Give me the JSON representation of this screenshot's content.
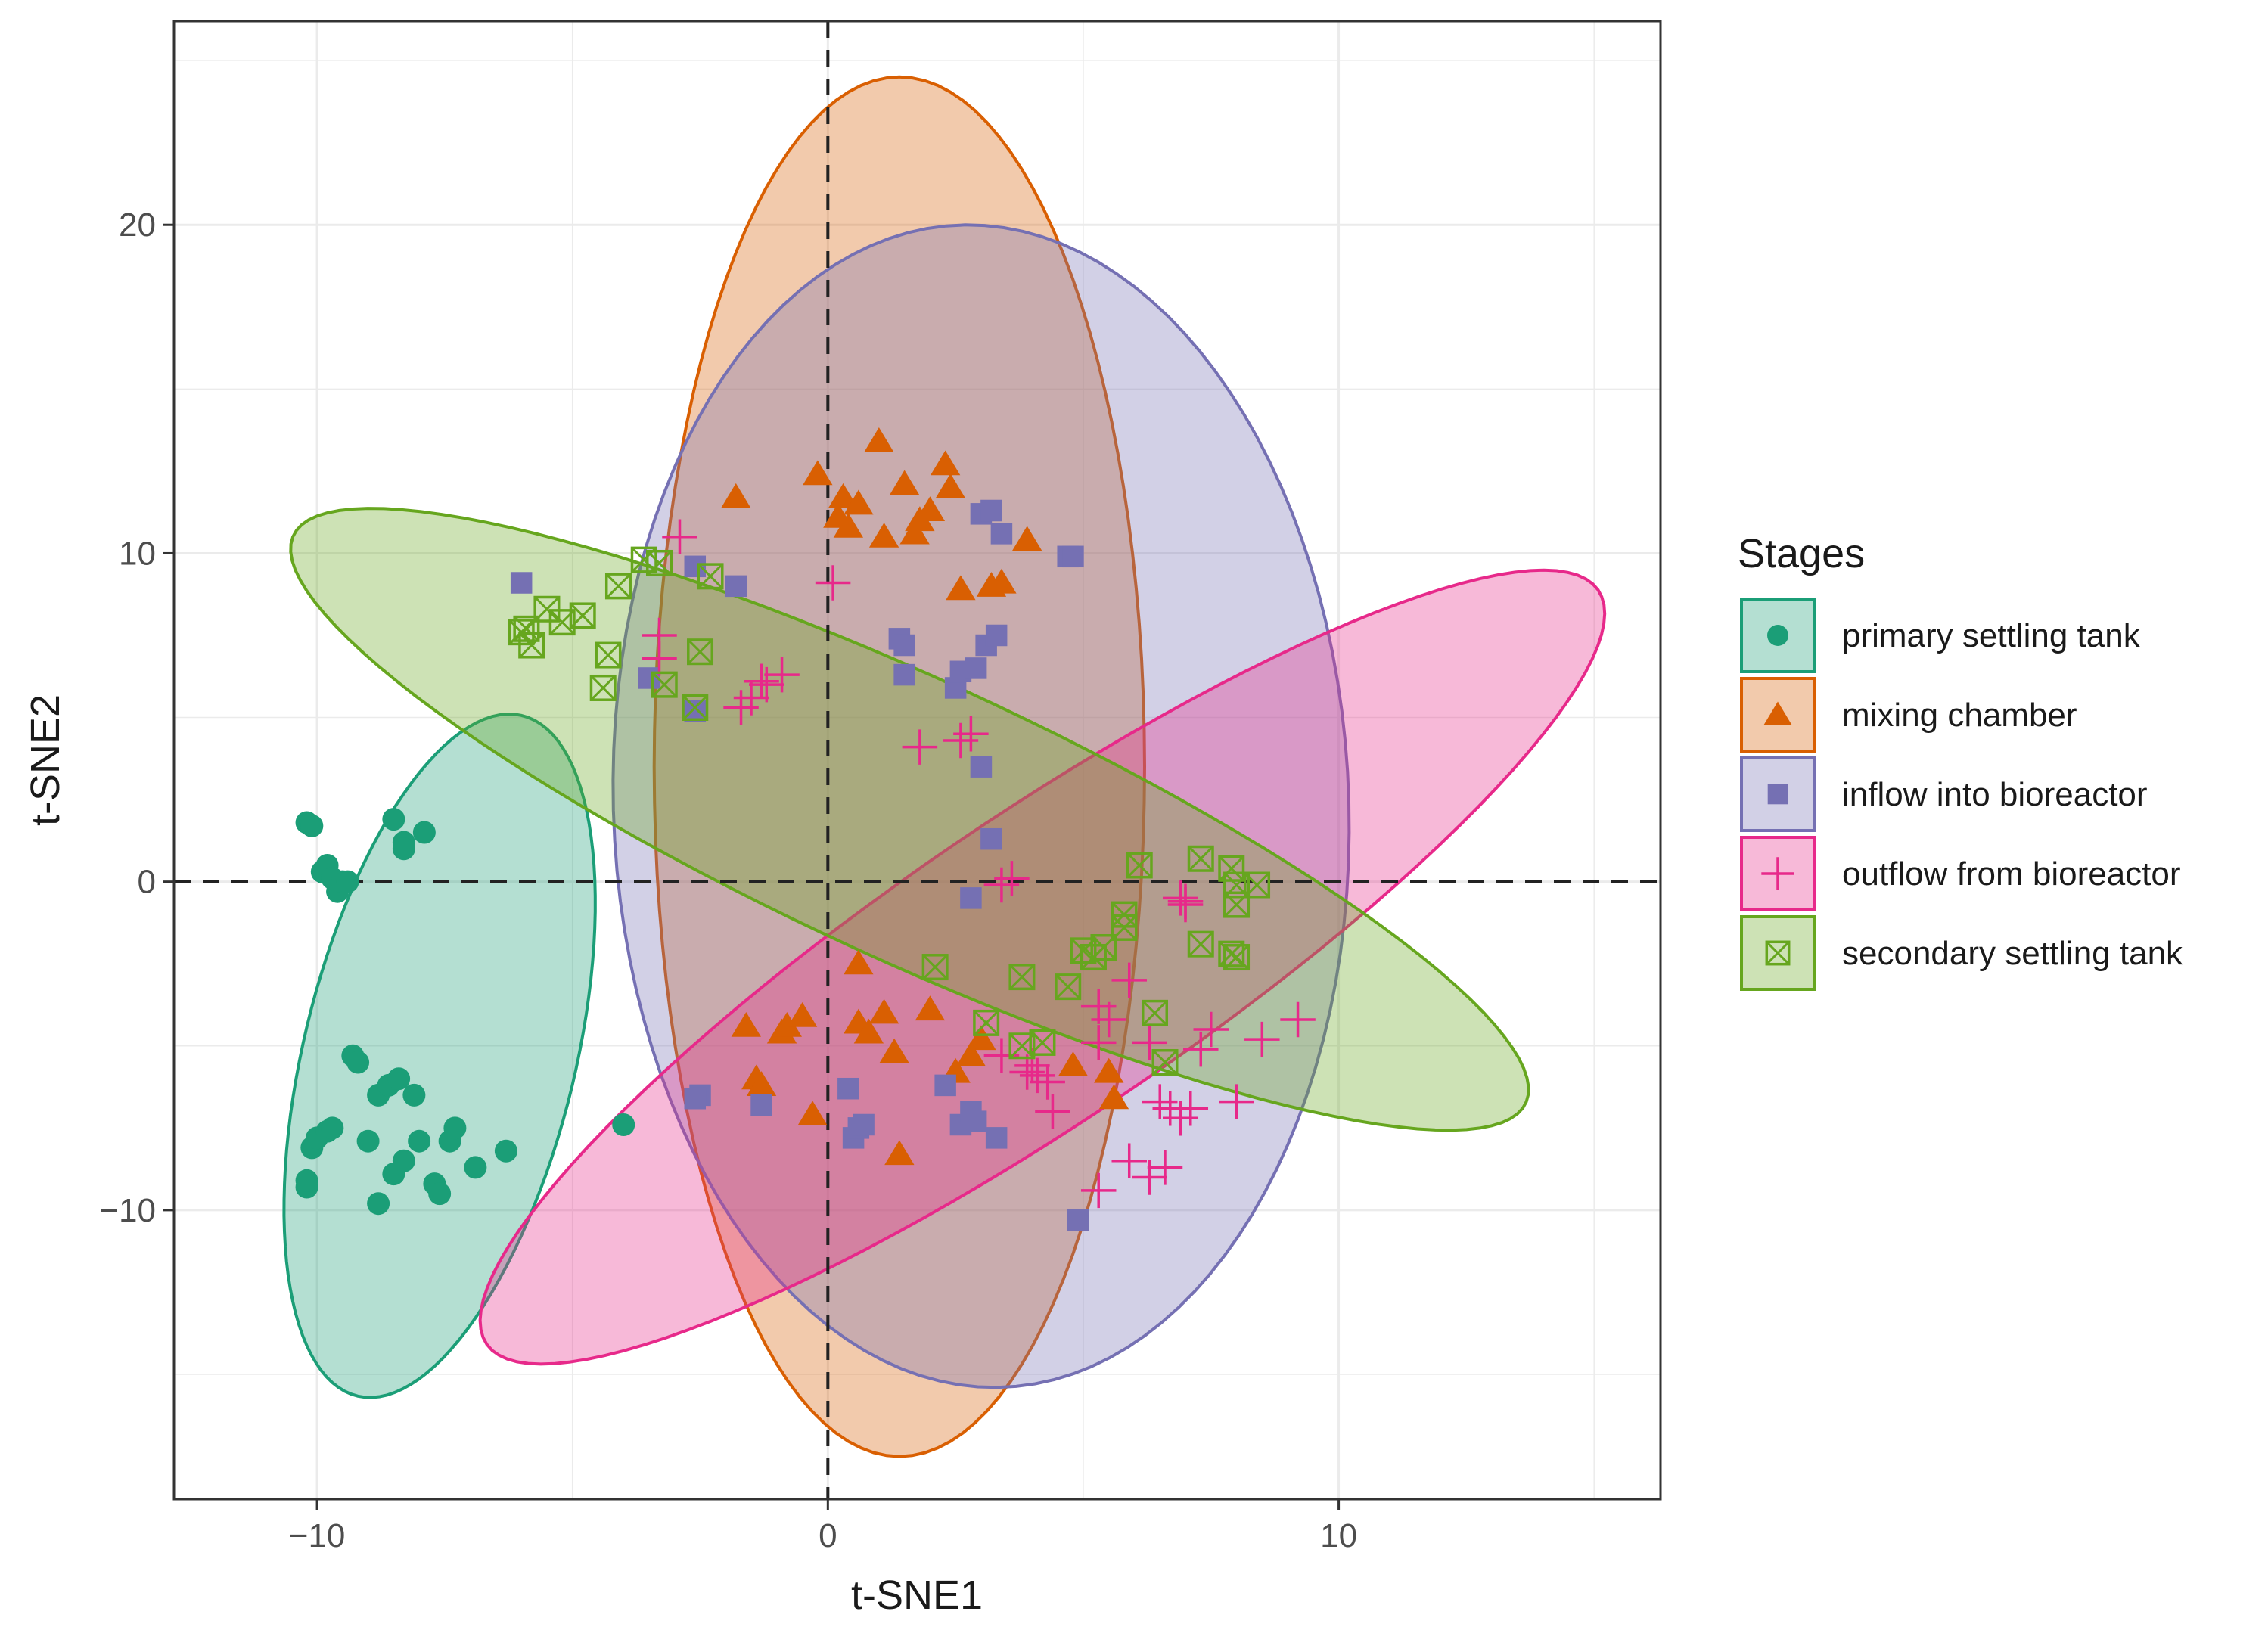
{
  "chart_data": {
    "type": "scatter",
    "xlabel": "t-SNE1",
    "ylabel": "t-SNE2",
    "xlim": [
      -12.8,
      16.3
    ],
    "ylim": [
      -18.8,
      26.2
    ],
    "x_ticks": [
      -10,
      0,
      10
    ],
    "x_tick_labels": [
      "−10",
      "0",
      "10"
    ],
    "y_ticks": [
      -10,
      0,
      10,
      20
    ],
    "y_tick_labels": [
      "−10",
      "0",
      "10",
      "20"
    ],
    "grid": true,
    "reference_lines": [
      {
        "axis": "x",
        "value": 0,
        "style": "dashed"
      },
      {
        "axis": "y",
        "value": 0,
        "style": "dashed"
      }
    ],
    "legend": {
      "title": "Stages",
      "position": "right"
    },
    "series": [
      {
        "name": "primary settling tank",
        "color": "#1b9e77",
        "marker": "circle",
        "ellipse": {
          "cx": -7.6,
          "cy": -5.3,
          "rx": 10.5,
          "ry": 2.7,
          "angle": 82
        },
        "points": [
          [
            -10.2,
            1.8
          ],
          [
            -10.1,
            1.7
          ],
          [
            -9.9,
            0.3
          ],
          [
            -9.8,
            0.5
          ],
          [
            -9.7,
            0.1
          ],
          [
            -9.6,
            -0.3
          ],
          [
            -9.5,
            0.0
          ],
          [
            -9.4,
            0.0
          ],
          [
            -8.5,
            1.9
          ],
          [
            -8.3,
            1.2
          ],
          [
            -8.3,
            1.0
          ],
          [
            -7.9,
            1.5
          ],
          [
            -4.0,
            -7.4
          ],
          [
            -9.3,
            -5.3
          ],
          [
            -9.2,
            -5.5
          ],
          [
            -8.8,
            -6.5
          ],
          [
            -8.6,
            -6.2
          ],
          [
            -8.4,
            -6.0
          ],
          [
            -8.1,
            -6.5
          ],
          [
            -10.1,
            -8.1
          ],
          [
            -10.0,
            -7.8
          ],
          [
            -9.8,
            -7.6
          ],
          [
            -9.7,
            -7.5
          ],
          [
            -9.0,
            -7.9
          ],
          [
            -8.8,
            -9.8
          ],
          [
            -8.5,
            -8.9
          ],
          [
            -8.3,
            -8.5
          ],
          [
            -8.0,
            -7.9
          ],
          [
            -7.7,
            -9.2
          ],
          [
            -7.6,
            -9.5
          ],
          [
            -7.4,
            -7.9
          ],
          [
            -7.3,
            -7.5
          ],
          [
            -6.9,
            -8.7
          ],
          [
            -6.3,
            -8.2
          ],
          [
            -10.2,
            -9.3
          ],
          [
            -10.2,
            -9.1
          ]
        ]
      },
      {
        "name": "mixing chamber",
        "color": "#d95f02",
        "marker": "triangle",
        "ellipse": {
          "cx": 1.4,
          "cy": 3.5,
          "rx": 21.0,
          "ry": 4.8,
          "angle": 90
        },
        "points": [
          [
            -0.2,
            12.4
          ],
          [
            0.2,
            11.1
          ],
          [
            0.3,
            11.7
          ],
          [
            0.4,
            10.8
          ],
          [
            0.6,
            11.5
          ],
          [
            1.0,
            13.4
          ],
          [
            1.1,
            10.5
          ],
          [
            1.5,
            12.1
          ],
          [
            1.7,
            10.6
          ],
          [
            1.8,
            11.0
          ],
          [
            2.0,
            11.3
          ],
          [
            2.3,
            12.7
          ],
          [
            2.4,
            12.0
          ],
          [
            2.6,
            8.9
          ],
          [
            3.2,
            9.0
          ],
          [
            3.4,
            9.1
          ],
          [
            3.9,
            10.4
          ],
          [
            -1.8,
            11.7
          ],
          [
            -1.6,
            -4.4
          ],
          [
            -1.4,
            -6.0
          ],
          [
            -1.3,
            -6.2
          ],
          [
            -0.9,
            -4.6
          ],
          [
            -0.8,
            -4.4
          ],
          [
            -0.5,
            -4.1
          ],
          [
            -0.3,
            -7.1
          ],
          [
            0.6,
            -2.5
          ],
          [
            0.6,
            -4.3
          ],
          [
            0.8,
            -4.6
          ],
          [
            1.1,
            -4.0
          ],
          [
            1.3,
            -5.2
          ],
          [
            1.4,
            -8.3
          ],
          [
            2.0,
            -3.9
          ],
          [
            2.5,
            -5.8
          ],
          [
            4.8,
            -5.6
          ],
          [
            5.5,
            -5.8
          ],
          [
            5.6,
            -6.6
          ],
          [
            3.0,
            -4.8
          ],
          [
            2.8,
            -5.3
          ]
        ]
      },
      {
        "name": "inflow into bioreactor",
        "color": "#7570b3",
        "marker": "square",
        "ellipse": {
          "cx": 3.0,
          "cy": 2.3,
          "rx": 17.7,
          "ry": 7.2,
          "angle": 91
        },
        "points": [
          [
            -6.0,
            9.1
          ],
          [
            -3.5,
            6.2
          ],
          [
            -2.6,
            9.6
          ],
          [
            -2.6,
            5.2
          ],
          [
            -1.8,
            9.0
          ],
          [
            1.4,
            7.4
          ],
          [
            1.5,
            7.2
          ],
          [
            1.5,
            6.3
          ],
          [
            2.5,
            5.9
          ],
          [
            2.6,
            6.4
          ],
          [
            2.9,
            6.5
          ],
          [
            3.0,
            11.2
          ],
          [
            3.1,
            7.2
          ],
          [
            3.2,
            11.3
          ],
          [
            3.3,
            7.5
          ],
          [
            3.4,
            10.6
          ],
          [
            4.7,
            9.9
          ],
          [
            4.8,
            9.9
          ],
          [
            3.0,
            3.5
          ],
          [
            3.2,
            1.3
          ],
          [
            2.8,
            -0.5
          ],
          [
            -2.5,
            -6.5
          ],
          [
            -2.6,
            -6.6
          ],
          [
            -1.3,
            -6.8
          ],
          [
            0.4,
            -6.3
          ],
          [
            0.5,
            -7.8
          ],
          [
            0.6,
            -7.5
          ],
          [
            0.7,
            -7.4
          ],
          [
            2.3,
            -6.2
          ],
          [
            2.6,
            -7.4
          ],
          [
            2.8,
            -7.0
          ],
          [
            3.3,
            -7.8
          ],
          [
            4.9,
            -10.3
          ],
          [
            2.9,
            -7.3
          ]
        ]
      },
      {
        "name": "outflow from bioreactor",
        "color": "#e7298a",
        "marker": "plus",
        "ellipse": {
          "cx": 4.2,
          "cy": -2.6,
          "rx": 15.9,
          "ry": 3.8,
          "angle": 48
        },
        "points": [
          [
            -2.9,
            10.5
          ],
          [
            -3.3,
            7.5
          ],
          [
            -3.3,
            6.8
          ],
          [
            -1.7,
            5.3
          ],
          [
            -1.5,
            5.6
          ],
          [
            -1.3,
            6.1
          ],
          [
            -1.2,
            6.0
          ],
          [
            -0.9,
            6.3
          ],
          [
            0.1,
            9.1
          ],
          [
            1.8,
            4.1
          ],
          [
            2.6,
            4.3
          ],
          [
            2.8,
            4.5
          ],
          [
            3.4,
            -0.1
          ],
          [
            3.6,
            0.1
          ],
          [
            6.9,
            -0.5
          ],
          [
            7.0,
            -0.7
          ],
          [
            3.4,
            -5.3
          ],
          [
            3.9,
            -5.8
          ],
          [
            4.1,
            -5.9
          ],
          [
            4.3,
            -6.1
          ],
          [
            4.4,
            -7.0
          ],
          [
            5.3,
            -3.8
          ],
          [
            5.3,
            -4.9
          ],
          [
            5.5,
            -4.2
          ],
          [
            5.9,
            -3.0
          ],
          [
            6.3,
            -4.9
          ],
          [
            6.5,
            -6.7
          ],
          [
            6.7,
            -6.9
          ],
          [
            6.9,
            -7.2
          ],
          [
            7.1,
            -6.9
          ],
          [
            7.3,
            -5.1
          ],
          [
            7.5,
            -4.5
          ],
          [
            8.0,
            -6.7
          ],
          [
            8.5,
            -4.8
          ],
          [
            9.2,
            -4.2
          ],
          [
            5.3,
            -9.4
          ],
          [
            5.9,
            -8.5
          ],
          [
            6.3,
            -9.0
          ],
          [
            6.6,
            -8.7
          ],
          [
            7.0,
            -0.6
          ],
          [
            4.0,
            -5.6
          ]
        ]
      },
      {
        "name": "secondary settling tank",
        "color": "#66a61e",
        "marker": "square-x",
        "ellipse": {
          "cx": 1.6,
          "cy": 1.9,
          "rx": 14.9,
          "ry": 3.8,
          "angle": -37
        },
        "points": [
          [
            -6.0,
            7.6
          ],
          [
            -5.9,
            7.7
          ],
          [
            -5.8,
            7.2
          ],
          [
            -5.5,
            8.3
          ],
          [
            -5.2,
            7.9
          ],
          [
            -4.8,
            8.1
          ],
          [
            -4.3,
            6.9
          ],
          [
            -4.4,
            5.9
          ],
          [
            -4.1,
            9.0
          ],
          [
            -3.6,
            9.8
          ],
          [
            -3.3,
            9.7
          ],
          [
            -3.2,
            6.0
          ],
          [
            -2.6,
            5.3
          ],
          [
            -2.5,
            7.0
          ],
          [
            -2.3,
            9.3
          ],
          [
            6.1,
            0.5
          ],
          [
            7.3,
            0.7
          ],
          [
            7.9,
            0.4
          ],
          [
            8.0,
            -0.1
          ],
          [
            8.0,
            -0.7
          ],
          [
            8.4,
            -0.1
          ],
          [
            5.8,
            -1.0
          ],
          [
            5.8,
            -1.4
          ],
          [
            5.4,
            -2.0
          ],
          [
            5.2,
            -2.3
          ],
          [
            5.0,
            -2.1
          ],
          [
            4.7,
            -3.2
          ],
          [
            7.3,
            -1.9
          ],
          [
            7.9,
            -2.2
          ],
          [
            8.0,
            -2.3
          ],
          [
            6.4,
            -4.0
          ],
          [
            6.6,
            -5.5
          ],
          [
            3.8,
            -2.9
          ],
          [
            3.1,
            -4.3
          ],
          [
            3.8,
            -5.0
          ],
          [
            4.2,
            -4.9
          ],
          [
            2.1,
            -2.6
          ]
        ]
      }
    ]
  }
}
